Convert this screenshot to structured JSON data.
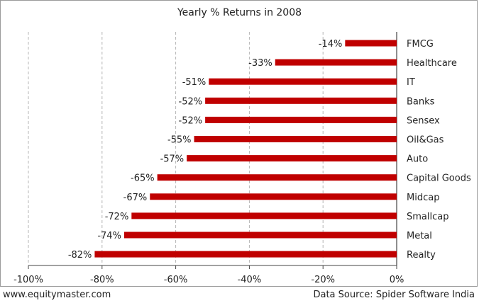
{
  "chart_data": {
    "type": "bar",
    "orientation": "horizontal",
    "title": "Yearly % Returns in 2008",
    "categories": [
      "FMCG",
      "Healthcare",
      "IT",
      "Banks",
      "Sensex",
      "Oil&Gas",
      "Auto",
      "Capital Goods",
      "Midcap",
      "Smallcap",
      "Metal",
      "Realty"
    ],
    "values": [
      -14,
      -33,
      -51,
      -52,
      -52,
      -55,
      -57,
      -65,
      -67,
      -72,
      -74,
      -82
    ],
    "data_labels": [
      "-14%",
      "-33%",
      "-51%",
      "-52%",
      "-52%",
      "-55%",
      "-57%",
      "-65%",
      "-67%",
      "-72%",
      "-74%",
      "-82%"
    ],
    "xlim": [
      -100,
      0
    ],
    "x_ticks": [
      -100,
      -80,
      -60,
      -40,
      -20,
      0
    ],
    "x_tick_labels": [
      "-100%",
      "-80%",
      "-60%",
      "-40%",
      "-20%",
      "0%"
    ],
    "grid": "vertical-dashed",
    "bar_color": "#c00000"
  },
  "footer": {
    "website": "www.equitymaster.com",
    "source": "Data Source: Spider Software India"
  }
}
